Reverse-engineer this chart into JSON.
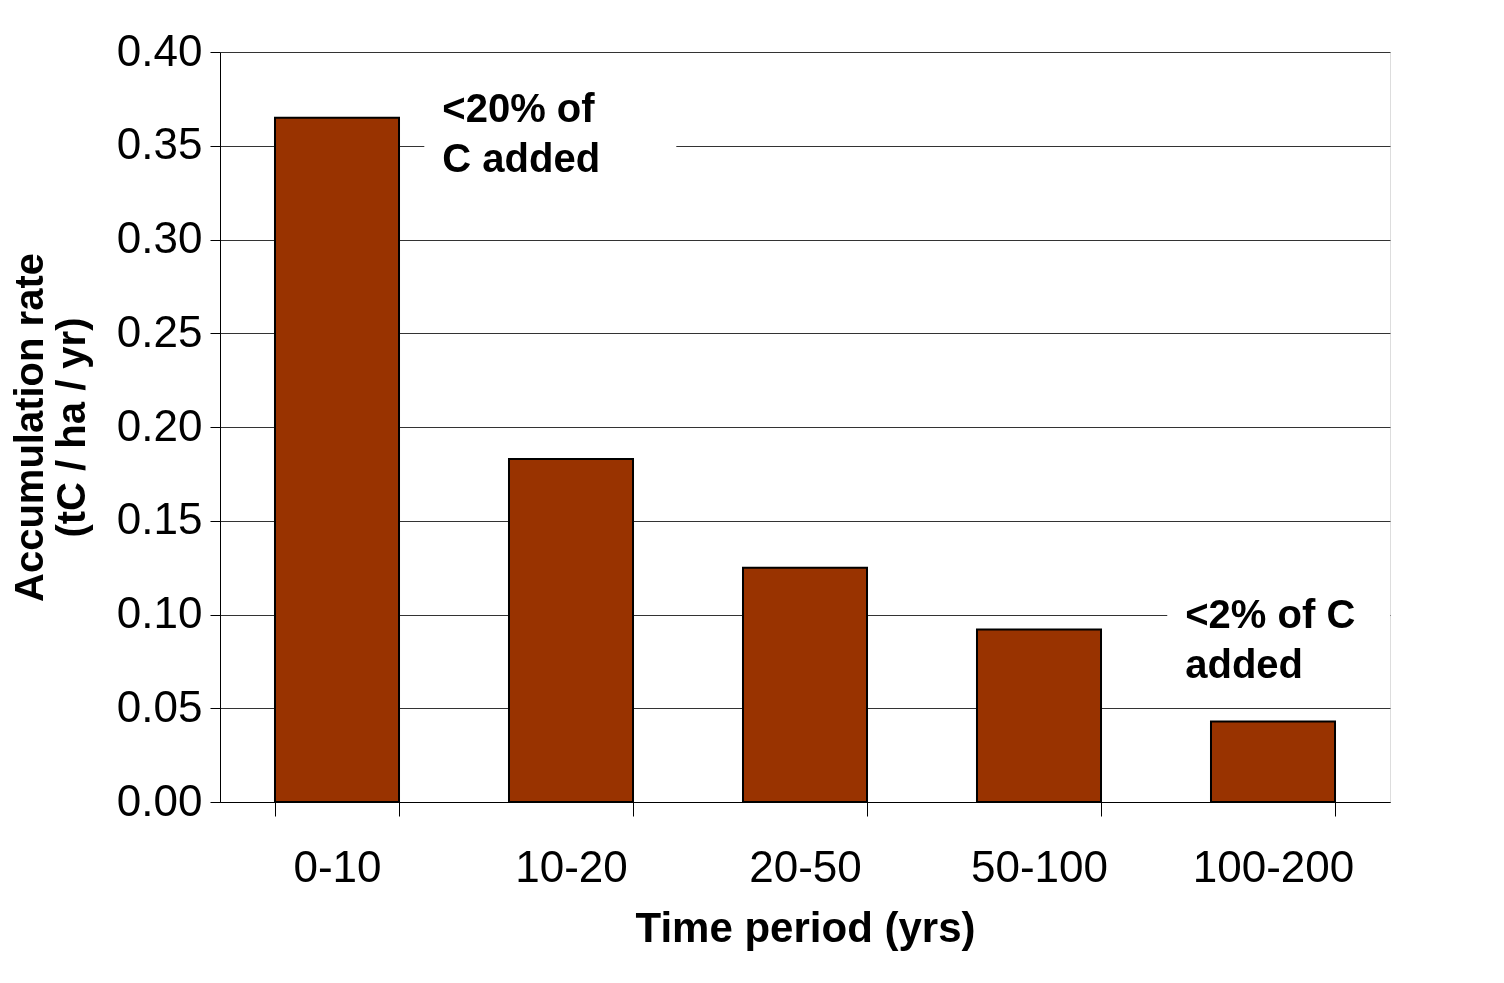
{
  "chart_data": {
    "type": "bar",
    "xlabel": "Time period (yrs)",
    "ylabel": "Accumulation rate\n(tC / ha / yr)",
    "categories": [
      "0-10",
      "10-20",
      "20-50",
      "50-100",
      "100-200"
    ],
    "values": [
      0.365,
      0.183,
      0.125,
      0.092,
      0.043
    ],
    "color": "#993300",
    "ylim": [
      0,
      0.4
    ],
    "yticks": [
      {
        "value": 0,
        "label": "0.00"
      },
      {
        "value": 0.05,
        "label": "0.05"
      },
      {
        "value": 0.1,
        "label": "0.10"
      },
      {
        "value": 0.15,
        "label": "0.15"
      },
      {
        "value": 0.2,
        "label": "0.20"
      },
      {
        "value": 0.25,
        "label": "0.25"
      },
      {
        "value": 0.3,
        "label": "0.30"
      },
      {
        "value": 0.35,
        "label": "0.35"
      },
      {
        "value": 0.4,
        "label": "0.40"
      }
    ],
    "grid": "y",
    "annotations": [
      "<20% of\nC added",
      "<2% of  C\nadded"
    ]
  }
}
